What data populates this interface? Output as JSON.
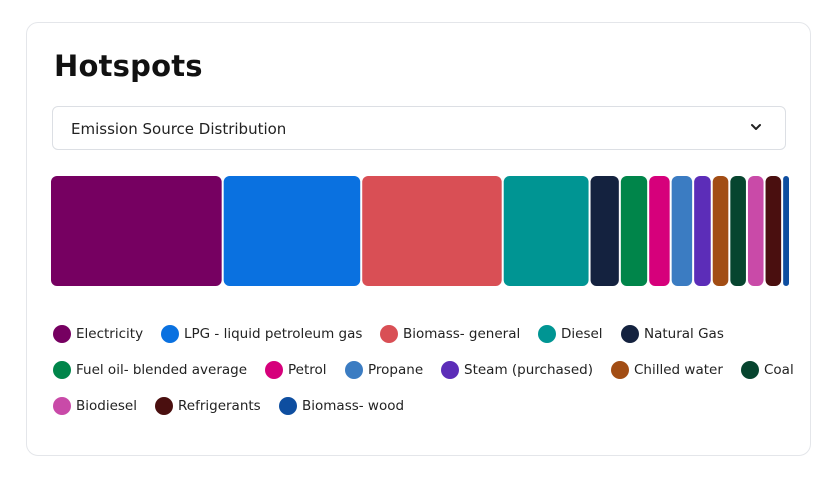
{
  "title": "Hotspots",
  "dropdown": {
    "selected": "Emission Source Distribution",
    "icon": "chevron-down-icon"
  },
  "chart_data": {
    "type": "bar",
    "subtype": "treemap",
    "title": "",
    "legend_position": "bottom",
    "grid": false,
    "categories": [
      "Electricity",
      "LPG - liquid petroleum gas",
      "Biomass- general",
      "Diesel",
      "Natural Gas",
      "Fuel oil- blended average",
      "Petrol",
      "Propane",
      "Steam (purchased)",
      "Chilled water",
      "Coal",
      "Biodiesel",
      "Refrigerants",
      "Biomass- wood"
    ],
    "values": [
      17.5,
      14.0,
      14.3,
      8.7,
      2.9,
      2.7,
      2.1,
      2.1,
      1.7,
      1.6,
      1.6,
      1.6,
      1.6,
      0.6
    ],
    "colors": [
      "#760061",
      "#0a71e0",
      "#d94f55",
      "#009593",
      "#14223f",
      "#00854a",
      "#d6007b",
      "#3b7cc2",
      "#5c2db8",
      "#a24d14",
      "#07452f",
      "#c94aa8",
      "#4a0f0f",
      "#0e4ea0"
    ]
  }
}
